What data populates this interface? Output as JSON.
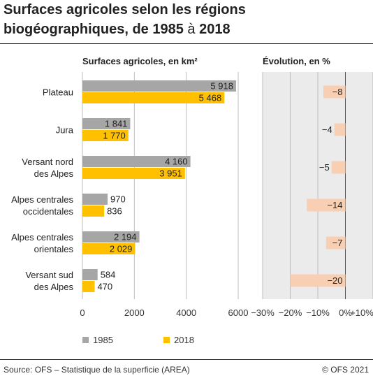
{
  "title": {
    "line1": "Surfaces agricoles selon les régions",
    "line2_a": "biogéographiques, de 1985",
    "line2_b": " à ",
    "line2_c": "2018"
  },
  "colors": {
    "series_1985": "#a6a6a6",
    "series_2018": "#ffc000",
    "evolution_bar": "#f9cfb4",
    "panel_bg": "#ebebeb",
    "gridline": "#ffffff"
  },
  "chart_data": [
    {
      "type": "bar",
      "orientation": "horizontal",
      "title": "Surfaces agricoles, en km²",
      "categories": [
        [
          "Plateau"
        ],
        [
          "Jura"
        ],
        [
          "Versant nord",
          "des Alpes"
        ],
        [
          "Alpes centrales",
          "occidentales"
        ],
        [
          "Alpes centrales",
          "orientales"
        ],
        [
          "Versant sud",
          "des Alpes"
        ]
      ],
      "series": [
        {
          "name": "1985",
          "values": [
            5918,
            1841,
            4160,
            970,
            2194,
            584
          ],
          "labels": [
            "5 918",
            "1 841",
            "4 160",
            "970",
            "2 194",
            "584"
          ]
        },
        {
          "name": "2018",
          "values": [
            5468,
            1770,
            3951,
            836,
            2029,
            470
          ],
          "labels": [
            "5 468",
            "1 770",
            "3 951",
            "836",
            "2 029",
            "470"
          ]
        }
      ],
      "xlim": [
        0,
        6000
      ],
      "xticks": [
        0,
        2000,
        4000,
        6000
      ],
      "xtick_labels": [
        "0",
        "2000",
        "4000",
        "6000"
      ],
      "grid": true,
      "legend_position": "bottom"
    },
    {
      "type": "bar",
      "orientation": "horizontal",
      "title": "Évolution, en %",
      "categories": [
        [
          "Plateau"
        ],
        [
          "Jura"
        ],
        [
          "Versant nord",
          "des Alpes"
        ],
        [
          "Alpes centrales",
          "occidentales"
        ],
        [
          "Alpes centrales",
          "orientales"
        ],
        [
          "Versant sud",
          "des Alpes"
        ]
      ],
      "values": [
        -8,
        -4,
        -5,
        -14,
        -7,
        -20
      ],
      "labels": [
        "−8",
        "−4",
        "−5",
        "−14",
        "−7",
        "−20"
      ],
      "xlim": [
        -30,
        10
      ],
      "xticks": [
        -30,
        -20,
        -10,
        0,
        10
      ],
      "xtick_labels": [
        "−30%",
        "−20%",
        "−10%",
        "0%",
        "+10%"
      ],
      "grid": true
    }
  ],
  "legend": {
    "item_1985": "1985",
    "item_2018": "2018"
  },
  "footer": {
    "source": "Source: OFS – Statistique de la superficie (AREA)",
    "copyright": "© OFS  2021"
  }
}
